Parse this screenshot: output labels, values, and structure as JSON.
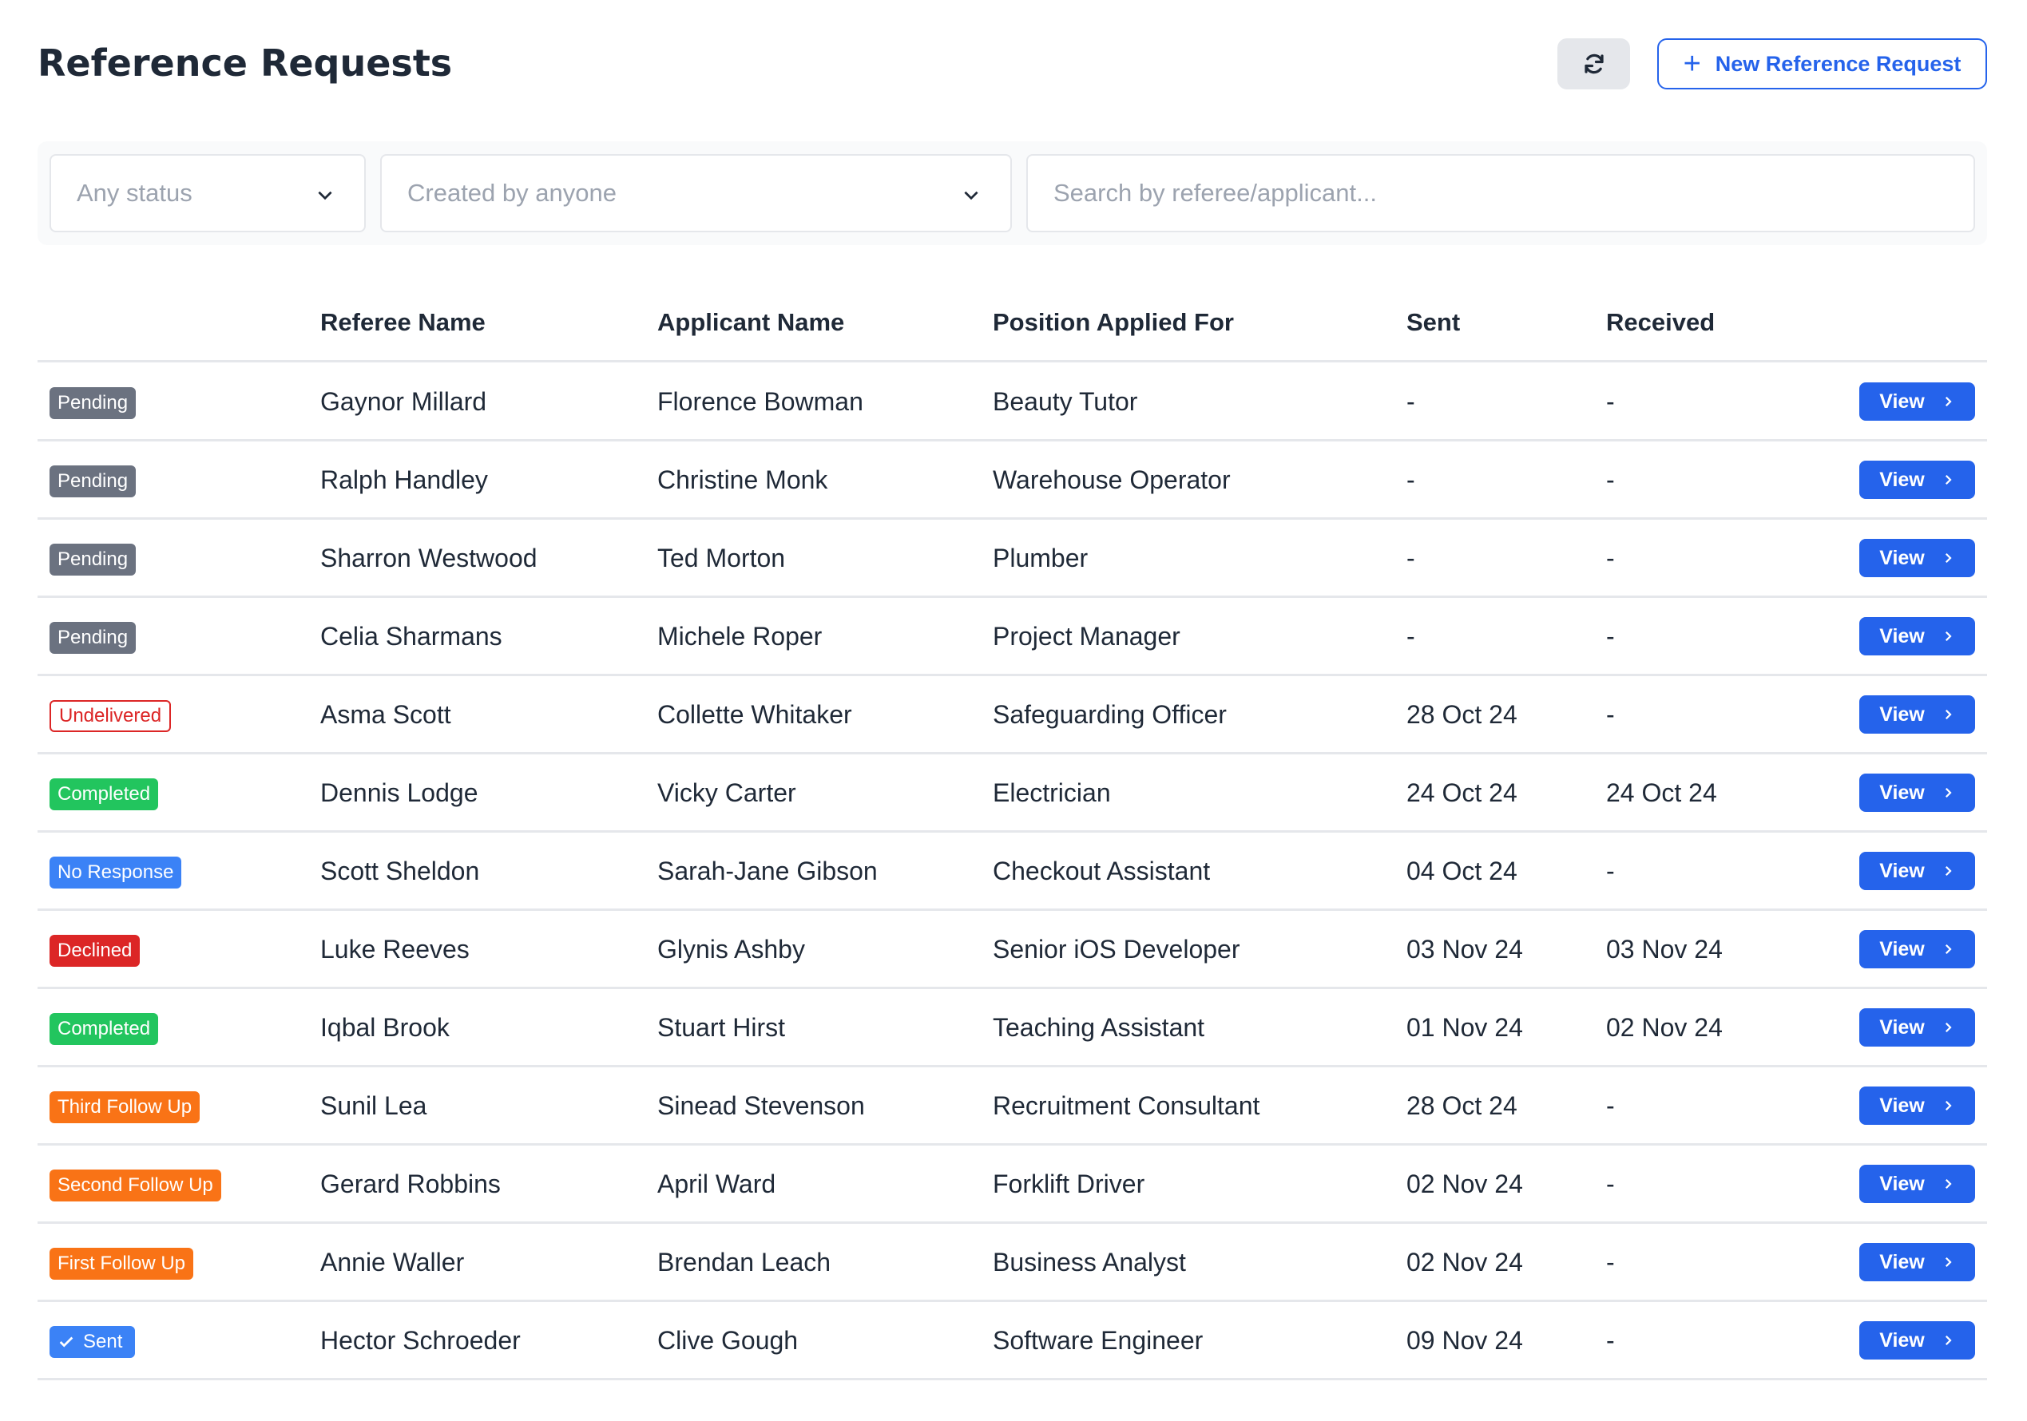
{
  "header": {
    "title": "Reference Requests",
    "refresh_icon": "refresh-icon",
    "new_button": "New Reference Request"
  },
  "filters": {
    "status": "Any status",
    "created_by": "Created by anyone",
    "search_placeholder": "Search by referee/applicant..."
  },
  "table": {
    "columns": [
      "",
      "Referee Name",
      "Applicant Name",
      "Position Applied For",
      "Sent",
      "Received"
    ],
    "view_label": "View",
    "status_colors": {
      "Pending": "#6b7280",
      "Undelivered": "#dc2626",
      "Completed": "#22c55e",
      "No Response": "#3b82f6",
      "Declined": "#dc2626",
      "Third Follow Up": "#f97316",
      "Second Follow Up": "#f97316",
      "First Follow Up": "#f97316",
      "Sent": "#3b82f6"
    },
    "rows": [
      {
        "status": "Pending",
        "referee": "Gaynor Millard",
        "applicant": "Florence Bowman",
        "position": "Beauty Tutor",
        "sent": "-",
        "received": "-"
      },
      {
        "status": "Pending",
        "referee": "Ralph Handley",
        "applicant": "Christine Monk",
        "position": "Warehouse Operator",
        "sent": "-",
        "received": "-"
      },
      {
        "status": "Pending",
        "referee": "Sharron Westwood",
        "applicant": "Ted Morton",
        "position": "Plumber",
        "sent": "-",
        "received": "-"
      },
      {
        "status": "Pending",
        "referee": "Celia Sharmans",
        "applicant": "Michele Roper",
        "position": "Project Manager",
        "sent": "-",
        "received": "-"
      },
      {
        "status": "Undelivered",
        "referee": "Asma Scott",
        "applicant": "Collette Whitaker",
        "position": "Safeguarding Officer",
        "sent": "28 Oct 24",
        "received": "-"
      },
      {
        "status": "Completed",
        "referee": "Dennis Lodge",
        "applicant": "Vicky Carter",
        "position": "Electrician",
        "sent": "24 Oct 24",
        "received": "24 Oct 24"
      },
      {
        "status": "No Response",
        "referee": "Scott Sheldon",
        "applicant": "Sarah-Jane Gibson",
        "position": "Checkout Assistant",
        "sent": "04 Oct 24",
        "received": "-"
      },
      {
        "status": "Declined",
        "referee": "Luke Reeves",
        "applicant": "Glynis Ashby",
        "position": "Senior iOS Developer",
        "sent": "03 Nov 24",
        "received": "03 Nov 24"
      },
      {
        "status": "Completed",
        "referee": "Iqbal Brook",
        "applicant": "Stuart Hirst",
        "position": "Teaching Assistant",
        "sent": "01 Nov 24",
        "received": "02 Nov 24"
      },
      {
        "status": "Third Follow Up",
        "referee": "Sunil Lea",
        "applicant": "Sinead Stevenson",
        "position": "Recruitment Consultant",
        "sent": "28 Oct 24",
        "received": "-"
      },
      {
        "status": "Second Follow Up",
        "referee": "Gerard Robbins",
        "applicant": "April Ward",
        "position": "Forklift Driver",
        "sent": "02 Nov 24",
        "received": "-"
      },
      {
        "status": "First Follow Up",
        "referee": "Annie Waller",
        "applicant": "Brendan Leach",
        "position": "Business Analyst",
        "sent": "02 Nov 24",
        "received": "-"
      },
      {
        "status": "Sent",
        "referee": "Hector Schroeder",
        "applicant": "Clive Gough",
        "position": "Software Engineer",
        "sent": "09 Nov 24",
        "received": "-"
      }
    ]
  }
}
